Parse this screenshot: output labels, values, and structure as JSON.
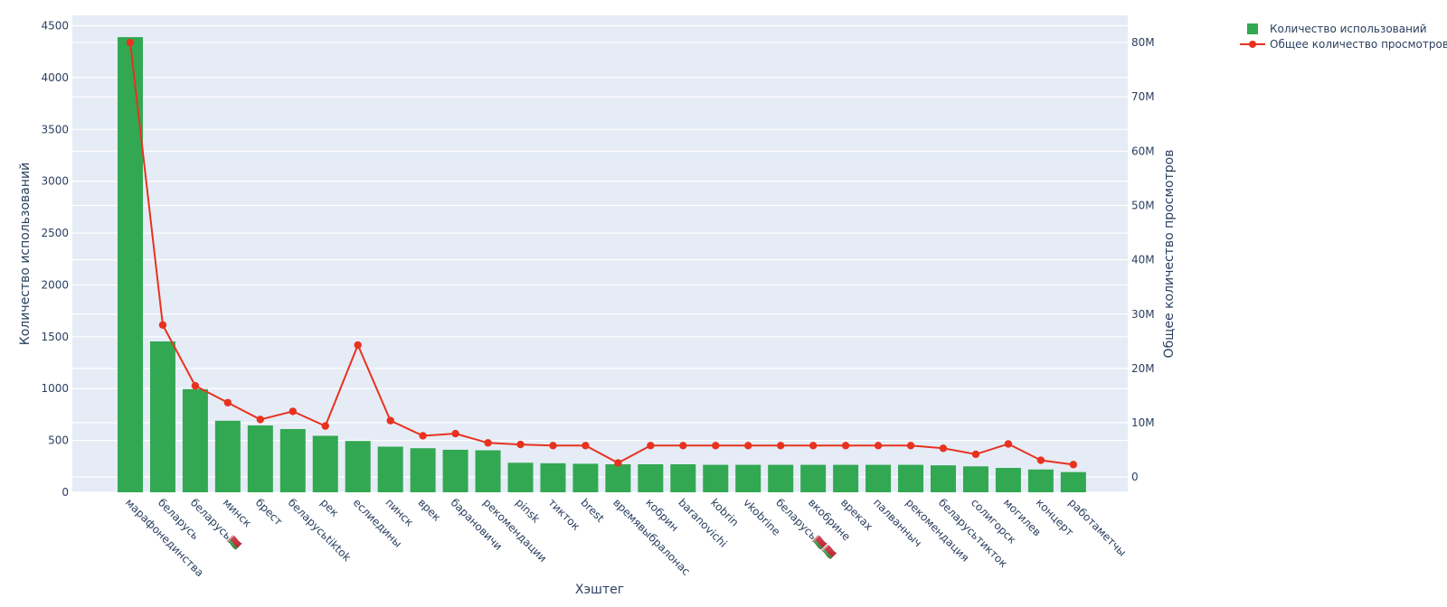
{
  "chart_data": {
    "type": "bar",
    "xlabel": "Хэштег",
    "ylabel": "Количество использований",
    "y2label": "Общее количество просмотров",
    "ylim": [
      0,
      4600
    ],
    "y2lim": [
      -2800000,
      85000000
    ],
    "yticks": [
      "0",
      "500",
      "1000",
      "1500",
      "2000",
      "2500",
      "3000",
      "3500",
      "4000",
      "4500"
    ],
    "y2ticks": [
      "0",
      "10M",
      "20M",
      "30M",
      "40M",
      "50M",
      "60M",
      "70M",
      "80M"
    ],
    "categories": [
      "марафонединства",
      "беларусь",
      "беларусь🇧🇾",
      "минск",
      "брест",
      "беларусьtiktok",
      "рек",
      "еслиедины",
      "пинск",
      "врек",
      "барановичи",
      "рекомендации",
      "pinsk",
      "тикток",
      "brest",
      "времявыбралонас",
      "кобрин",
      "baranovichi",
      "kobrin",
      "vkobrine",
      "беларусь🇧🇾🇧🇾",
      "вкобрине",
      "вреках",
      "палванныч",
      "рекомендация",
      "беларусьтикток",
      "солигорск",
      "могилев",
      "концерт",
      "работаметчы"
    ],
    "series": [
      {
        "name": "Количество использований",
        "kind": "bar",
        "color": "#32a852",
        "values": [
          4390,
          1455,
          995,
          690,
          645,
          610,
          545,
          495,
          440,
          425,
          410,
          405,
          285,
          280,
          275,
          270,
          270,
          270,
          265,
          265,
          265,
          265,
          265,
          265,
          265,
          260,
          250,
          235,
          220,
          195
        ]
      },
      {
        "name": "Общее количество просмотров",
        "kind": "line",
        "color": "#e8321f",
        "values": [
          80000000,
          28000000,
          16800000,
          13700000,
          10600000,
          12100000,
          9400000,
          24300000,
          10400000,
          7600000,
          8000000,
          6300000,
          6000000,
          5800000,
          5800000,
          2600000,
          5800000,
          5800000,
          5800000,
          5800000,
          5800000,
          5800000,
          5800000,
          5800000,
          5800000,
          5300000,
          4200000,
          6100000,
          3100000,
          2300000
        ]
      }
    ],
    "legend": "top-right",
    "grid": true
  }
}
